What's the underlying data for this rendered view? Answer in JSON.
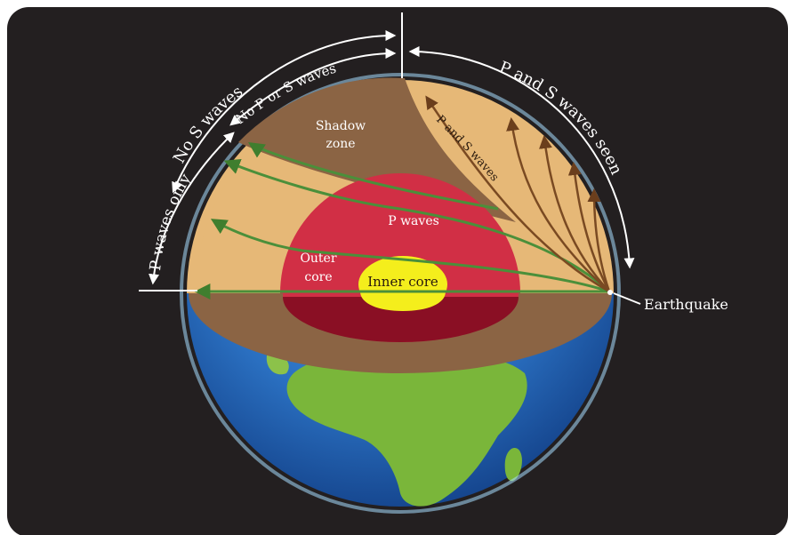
{
  "labels": {
    "no_s_waves": "No S waves",
    "no_p_or_s_waves": "No P or S waves",
    "p_and_s_waves_seen": "P and S waves seen",
    "p_waves_only": "P waves only",
    "shadow_zone_line1": "Shadow",
    "shadow_zone_line2": "zone",
    "p_and_s_waves": "P and S waves",
    "p_waves": "P waves",
    "outer_core_line1": "Outer",
    "outer_core_line2": "core",
    "inner_core": "Inner core",
    "earthquake": "Earthquake"
  },
  "colors": {
    "background": "#231f20",
    "mantle": "#e6b877",
    "shadow_zone": "#8b6444",
    "outer_core": "#d12f45",
    "lower_outer_core": "#8a0f24",
    "inner_core": "#f4ee1c",
    "ocean": "#2f78c8",
    "land": "#7ab63a",
    "wave_path_green": "#4b8f3a",
    "wave_path_brown": "#7a4a22",
    "annotation": "#ffffff"
  }
}
